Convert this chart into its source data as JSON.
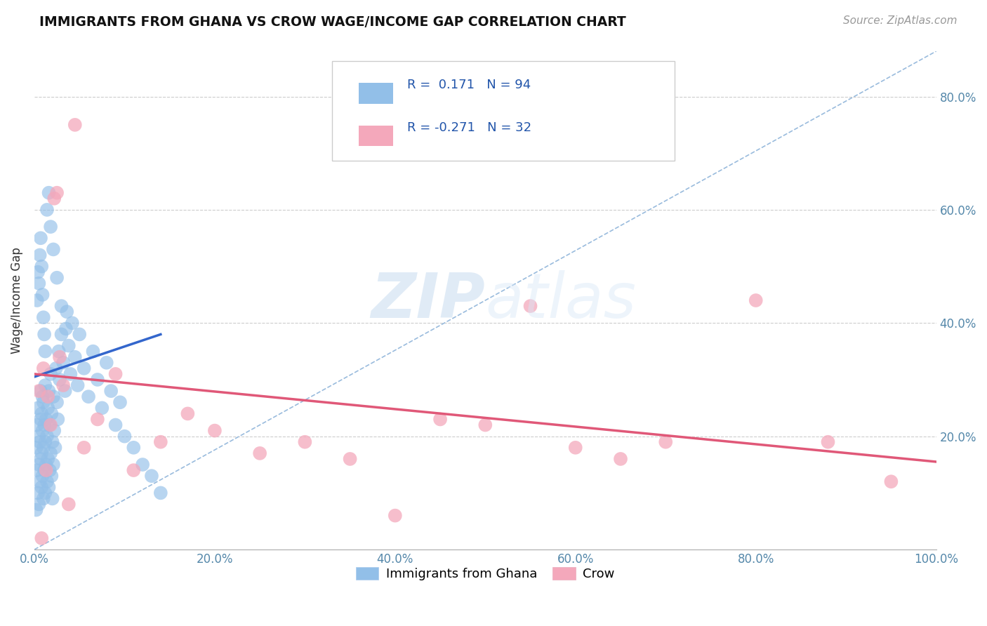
{
  "title": "IMMIGRANTS FROM GHANA VS CROW WAGE/INCOME GAP CORRELATION CHART",
  "source": "Source: ZipAtlas.com",
  "ylabel": "Wage/Income Gap",
  "xlim": [
    0.0,
    1.0
  ],
  "ylim": [
    0.0,
    0.88
  ],
  "ytick_values": [
    0.2,
    0.4,
    0.6,
    0.8
  ],
  "ytick_labels": [
    "20.0%",
    "40.0%",
    "60.0%",
    "80.0%"
  ],
  "xtick_values": [
    0.0,
    0.2,
    0.4,
    0.6,
    0.8,
    1.0
  ],
  "xtick_labels": [
    "0.0%",
    "20.0%",
    "40.0%",
    "60.0%",
    "80.0%",
    "100.0%"
  ],
  "blue_R": 0.171,
  "blue_N": 94,
  "pink_R": -0.271,
  "pink_N": 32,
  "blue_color": "#92BFE8",
  "pink_color": "#F4A8BB",
  "blue_line_color": "#3366CC",
  "pink_line_color": "#E05878",
  "dashed_line_color": "#99BBDD",
  "watermark_color": "#D8E8F8",
  "background_color": "#FFFFFF",
  "legend_label_blue": "Immigrants from Ghana",
  "legend_label_pink": "Crow",
  "blue_scatter_x": [
    0.002,
    0.003,
    0.003,
    0.004,
    0.004,
    0.005,
    0.005,
    0.005,
    0.006,
    0.006,
    0.007,
    0.007,
    0.007,
    0.008,
    0.008,
    0.008,
    0.009,
    0.009,
    0.009,
    0.01,
    0.01,
    0.01,
    0.011,
    0.011,
    0.012,
    0.012,
    0.012,
    0.013,
    0.013,
    0.014,
    0.014,
    0.015,
    0.015,
    0.016,
    0.016,
    0.017,
    0.017,
    0.018,
    0.018,
    0.019,
    0.019,
    0.02,
    0.02,
    0.021,
    0.021,
    0.022,
    0.023,
    0.024,
    0.025,
    0.026,
    0.027,
    0.028,
    0.03,
    0.032,
    0.034,
    0.036,
    0.038,
    0.04,
    0.042,
    0.045,
    0.048,
    0.05,
    0.055,
    0.06,
    0.065,
    0.07,
    0.075,
    0.08,
    0.085,
    0.09,
    0.095,
    0.1,
    0.11,
    0.12,
    0.13,
    0.14,
    0.003,
    0.004,
    0.005,
    0.006,
    0.007,
    0.008,
    0.009,
    0.01,
    0.011,
    0.012,
    0.014,
    0.016,
    0.018,
    0.021,
    0.025,
    0.03,
    0.035,
    0.002
  ],
  "blue_scatter_y": [
    0.18,
    0.14,
    0.22,
    0.1,
    0.25,
    0.08,
    0.15,
    0.2,
    0.12,
    0.19,
    0.16,
    0.23,
    0.28,
    0.11,
    0.17,
    0.24,
    0.13,
    0.21,
    0.27,
    0.09,
    0.18,
    0.26,
    0.14,
    0.22,
    0.1,
    0.19,
    0.29,
    0.15,
    0.23,
    0.12,
    0.2,
    0.16,
    0.25,
    0.11,
    0.28,
    0.14,
    0.22,
    0.17,
    0.31,
    0.13,
    0.24,
    0.09,
    0.19,
    0.15,
    0.27,
    0.21,
    0.18,
    0.32,
    0.26,
    0.23,
    0.35,
    0.3,
    0.38,
    0.33,
    0.28,
    0.42,
    0.36,
    0.31,
    0.4,
    0.34,
    0.29,
    0.38,
    0.32,
    0.27,
    0.35,
    0.3,
    0.25,
    0.33,
    0.28,
    0.22,
    0.26,
    0.2,
    0.18,
    0.15,
    0.13,
    0.1,
    0.44,
    0.49,
    0.47,
    0.52,
    0.55,
    0.5,
    0.45,
    0.41,
    0.38,
    0.35,
    0.6,
    0.63,
    0.57,
    0.53,
    0.48,
    0.43,
    0.39,
    0.07
  ],
  "pink_scatter_x": [
    0.005,
    0.008,
    0.01,
    0.013,
    0.015,
    0.018,
    0.022,
    0.025,
    0.028,
    0.032,
    0.038,
    0.045,
    0.055,
    0.07,
    0.09,
    0.11,
    0.14,
    0.17,
    0.2,
    0.25,
    0.3,
    0.35,
    0.4,
    0.45,
    0.5,
    0.55,
    0.6,
    0.65,
    0.7,
    0.8,
    0.88,
    0.95
  ],
  "pink_scatter_y": [
    0.28,
    0.02,
    0.32,
    0.14,
    0.27,
    0.22,
    0.62,
    0.63,
    0.34,
    0.29,
    0.08,
    0.75,
    0.18,
    0.23,
    0.31,
    0.14,
    0.19,
    0.24,
    0.21,
    0.17,
    0.19,
    0.16,
    0.06,
    0.23,
    0.22,
    0.43,
    0.18,
    0.16,
    0.19,
    0.44,
    0.19,
    0.12
  ],
  "blue_line_x": [
    0.0,
    0.14
  ],
  "pink_line_x": [
    0.0,
    1.0
  ],
  "blue_line_y_start": 0.305,
  "blue_line_y_end": 0.38,
  "pink_line_y_start": 0.31,
  "pink_line_y_end": 0.155,
  "dash_line_x": [
    0.0,
    1.0
  ],
  "dash_line_y": [
    0.0,
    0.88
  ]
}
